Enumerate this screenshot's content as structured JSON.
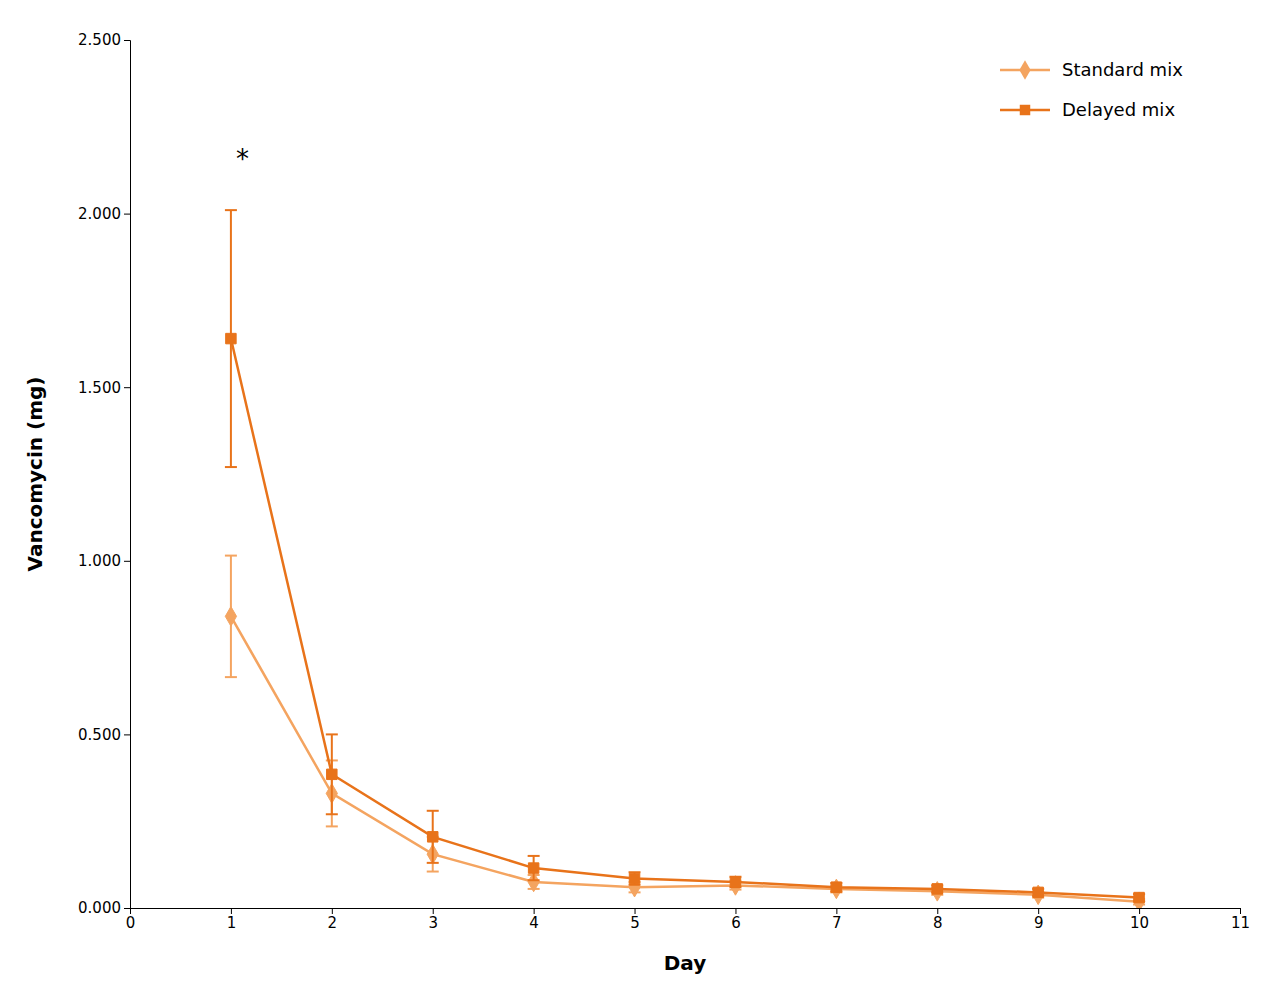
{
  "chart_data": {
    "type": "line",
    "xlabel": "Day",
    "ylabel": "Vancomycin (mg)",
    "x": [
      1,
      2,
      3,
      4,
      5,
      6,
      7,
      8,
      9,
      10
    ],
    "series": [
      {
        "name": "Standard mix",
        "color": "#F4A460",
        "marker": "diamond",
        "values": [
          0.84,
          0.33,
          0.155,
          0.075,
          0.06,
          0.065,
          0.055,
          0.048,
          0.038,
          0.018
        ],
        "errors": [
          0.175,
          0.095,
          0.05,
          0.02,
          0.015,
          0.012,
          0.01,
          0.01,
          0.008,
          0.008
        ]
      },
      {
        "name": "Delayed mix",
        "color": "#E8731A",
        "marker": "square",
        "values": [
          1.64,
          0.385,
          0.205,
          0.115,
          0.085,
          0.075,
          0.06,
          0.055,
          0.045,
          0.03
        ],
        "errors": [
          0.37,
          0.115,
          0.075,
          0.035,
          0.018,
          0.015,
          0.012,
          0.01,
          0.01,
          0.01
        ]
      }
    ],
    "xlim": [
      0,
      11
    ],
    "ylim": [
      0.0,
      2.5
    ],
    "xticks": [
      0,
      1,
      2,
      3,
      4,
      5,
      6,
      7,
      8,
      9,
      10,
      11
    ],
    "yticks": [
      {
        "value": 0.0,
        "label": "0.000"
      },
      {
        "value": 0.5,
        "label": "0.500"
      },
      {
        "value": 1.0,
        "label": "1.000"
      },
      {
        "value": 1.5,
        "label": "1.500"
      },
      {
        "value": 2.0,
        "label": "2.000"
      },
      {
        "value": 2.5,
        "label": "2.500"
      }
    ],
    "annotations": [
      {
        "text": "*",
        "x": 1.05,
        "y": 2.13
      }
    ],
    "legend": "upper right",
    "grid": false
  }
}
